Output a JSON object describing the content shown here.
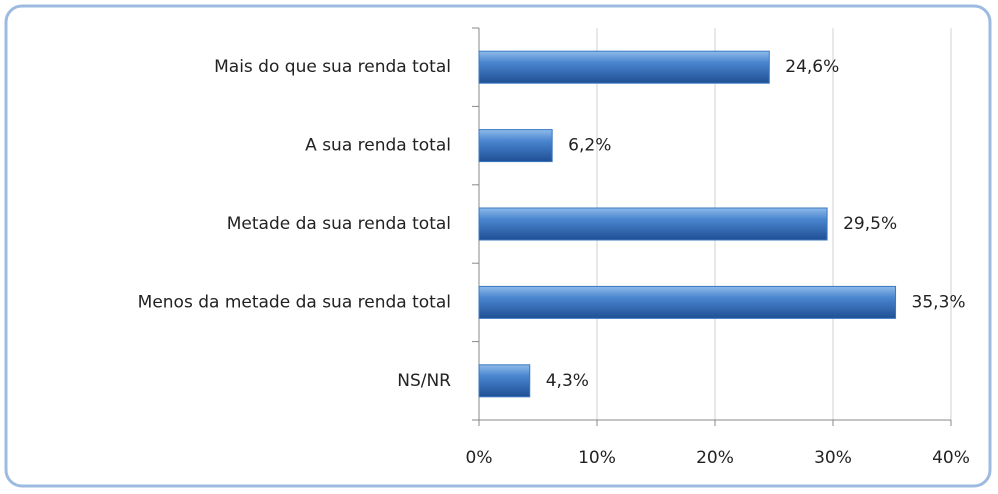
{
  "chart_data": {
    "type": "hbar",
    "categories": [
      "Mais do que sua renda total",
      "A sua renda total",
      "Metade da sua renda total",
      "Menos da metade da sua renda total",
      "NS/NR"
    ],
    "values": [
      24.6,
      6.2,
      29.5,
      35.3,
      4.3
    ],
    "value_labels": [
      "24,6%",
      "6,2%",
      "29,5%",
      "35,3%",
      "4,3%"
    ],
    "color": "#3a78c4",
    "xlim": [
      0,
      40
    ],
    "xticks": [
      {
        "value": 0,
        "label": "0%"
      },
      {
        "value": 10,
        "label": "10%"
      },
      {
        "value": 20,
        "label": "20%"
      },
      {
        "value": 30,
        "label": "30%"
      },
      {
        "value": 40,
        "label": "40%"
      }
    ],
    "grid": true
  }
}
